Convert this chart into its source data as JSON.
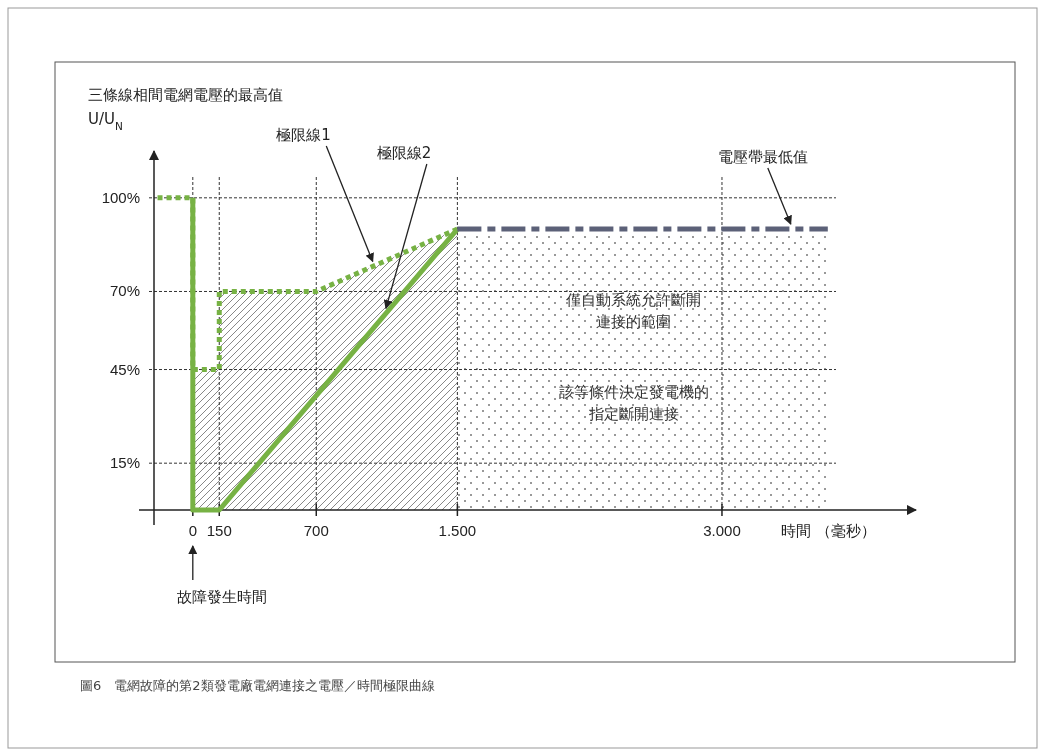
{
  "chart_data": {
    "type": "line",
    "ylabel": "三條線相間電網電壓的最高值\nU/U$_{N}$",
    "xlabel": "時間 （毫秒）",
    "xlim": [
      -220,
      4100
    ],
    "ylim": [
      0,
      115
    ],
    "xticks": [
      0,
      150,
      700,
      {
        "value": 1500,
        "label": "1.500"
      },
      {
        "value": 3000,
        "label": "3.000"
      }
    ],
    "yticks": [
      {
        "value": 15,
        "label": "15%"
      },
      {
        "value": 45,
        "label": "45%"
      },
      {
        "value": 70,
        "label": "70%"
      },
      {
        "value": 100,
        "label": "100%"
      }
    ],
    "grid": true,
    "series": [
      {
        "type": "area",
        "color": "#888888",
        "x": [
          0,
          0,
          150,
          150,
          700,
          1500,
          1500
        ],
        "values": [
          0,
          45,
          45,
          70,
          70,
          90,
          0
        ]
      },
      {
        "type": "area",
        "color": "#777777",
        "x": [
          1500,
          1500,
          3600,
          3600
        ],
        "values": [
          0,
          88,
          88,
          0
        ]
      },
      {
        "name": "極限線1",
        "color": "#77b244",
        "line_style": "dotted",
        "x": [
          -200,
          0,
          0,
          150,
          150,
          700,
          1500
        ],
        "values": [
          100,
          100,
          45,
          45,
          70,
          70,
          90
        ]
      },
      {
        "name": "極限線2",
        "color": "#77b244",
        "line_style": "solid",
        "x": [
          0,
          0,
          150,
          1500
        ],
        "values": [
          100,
          0,
          0,
          90
        ]
      },
      {
        "name": "電壓帶最低值",
        "color": "#5c6178",
        "line_style": "dashdot",
        "x": [
          1500,
          3600
        ],
        "values": [
          90,
          90
        ]
      }
    ],
    "annotations": [
      "僅自動系統允許斷開連接的範圍",
      "該等條件決定發電機的指定斷開連接",
      "故障發生時間",
      "圖6　電網故障的第2類發電廠電網連接之電壓／時間極限曲線"
    ]
  }
}
